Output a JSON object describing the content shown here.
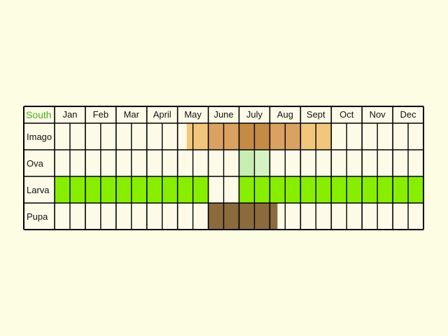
{
  "region": {
    "label": "South",
    "color": "#4cb01a"
  },
  "months": [
    "Jan",
    "Feb",
    "Mar",
    "April",
    "May",
    "June",
    "July",
    "Aug",
    "Sept",
    "Oct",
    "Nov",
    "Dec"
  ],
  "colors": {
    "background": "#fdfde3",
    "cell": "#fdfbe8",
    "grid": "#000000"
  },
  "stages": [
    {
      "id": "imago",
      "label": "Imago",
      "spans": [
        {
          "from": 4.3,
          "to": 5.0,
          "color": "#f2c77b"
        },
        {
          "from": 5.0,
          "to": 6.0,
          "color": "#d9a261"
        },
        {
          "from": 6.0,
          "to": 7.0,
          "color": "#c48b44"
        },
        {
          "from": 7.0,
          "to": 8.0,
          "color": "#d9a261"
        },
        {
          "from": 8.0,
          "to": 9.0,
          "color": "#f2c77b"
        }
      ]
    },
    {
      "id": "ova",
      "label": "Ova",
      "spans": [
        {
          "from": 6.0,
          "to": 6.5,
          "color": "#c9edb1"
        },
        {
          "from": 6.5,
          "to": 7.0,
          "color": "#d5f3c2"
        }
      ]
    },
    {
      "id": "larva",
      "label": "Larva",
      "spans": [
        {
          "from": 0.0,
          "to": 5.0,
          "color": "#88ee00"
        },
        {
          "from": 6.0,
          "to": 12.0,
          "color": "#88ee00"
        }
      ]
    },
    {
      "id": "pupa",
      "label": "Pupa",
      "spans": [
        {
          "from": 5.0,
          "to": 7.25,
          "color": "#8b6b3d"
        }
      ]
    }
  ]
}
